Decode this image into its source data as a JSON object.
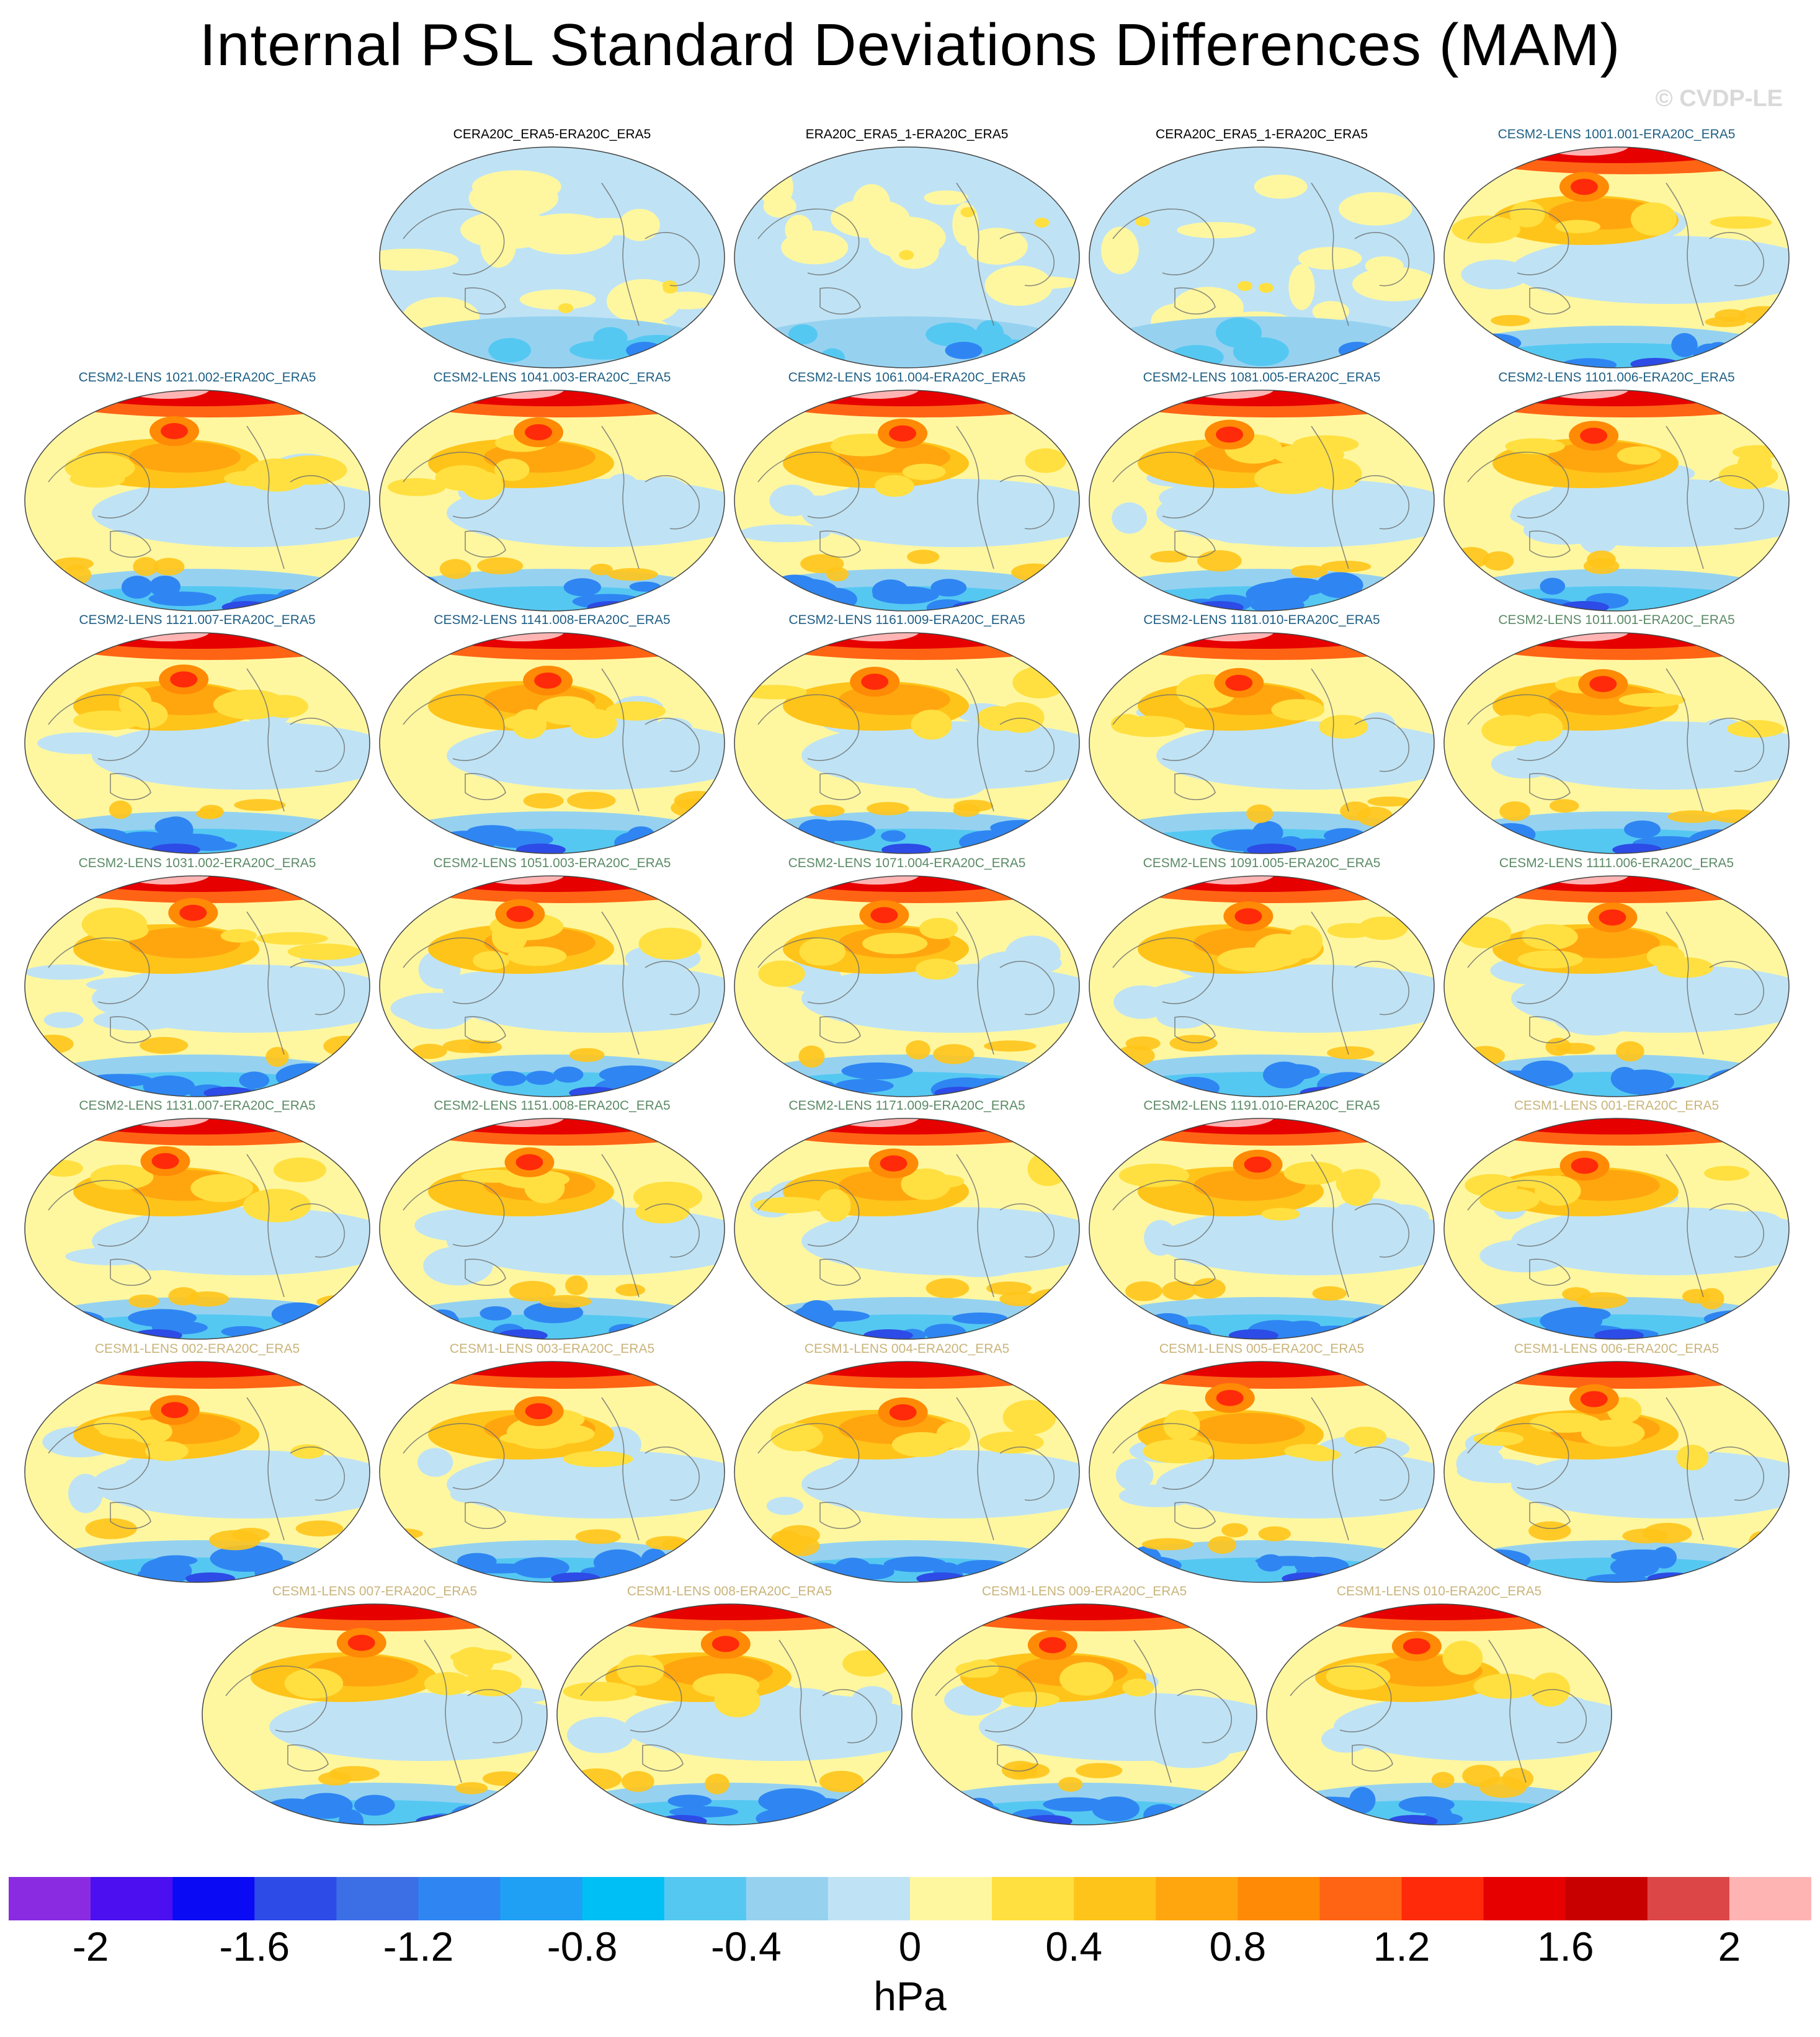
{
  "title": "Internal PSL Standard Deviations Differences (MAM)",
  "copyright": "© CVDP-LE",
  "panels": [
    {
      "label": "CERA20C_ERA5-ERA20C_ERA5",
      "group": "ref"
    },
    {
      "label": "ERA20C_ERA5_1-ERA20C_ERA5",
      "group": "ref"
    },
    {
      "label": "CERA20C_ERA5_1-ERA20C_ERA5",
      "group": "ref"
    },
    {
      "label": "CESM2-LENS 1001.001-ERA20C_ERA5",
      "group": "c2a"
    },
    {
      "label": "CESM2-LENS 1021.002-ERA20C_ERA5",
      "group": "c2a"
    },
    {
      "label": "CESM2-LENS 1041.003-ERA20C_ERA5",
      "group": "c2a"
    },
    {
      "label": "CESM2-LENS 1061.004-ERA20C_ERA5",
      "group": "c2a"
    },
    {
      "label": "CESM2-LENS 1081.005-ERA20C_ERA5",
      "group": "c2a"
    },
    {
      "label": "CESM2-LENS 1101.006-ERA20C_ERA5",
      "group": "c2a"
    },
    {
      "label": "CESM2-LENS 1121.007-ERA20C_ERA5",
      "group": "c2a"
    },
    {
      "label": "CESM2-LENS 1141.008-ERA20C_ERA5",
      "group": "c2a"
    },
    {
      "label": "CESM2-LENS 1161.009-ERA20C_ERA5",
      "group": "c2a"
    },
    {
      "label": "CESM2-LENS 1181.010-ERA20C_ERA5",
      "group": "c2a"
    },
    {
      "label": "CESM2-LENS 1011.001-ERA20C_ERA5",
      "group": "c2b"
    },
    {
      "label": "CESM2-LENS 1031.002-ERA20C_ERA5",
      "group": "c2b"
    },
    {
      "label": "CESM2-LENS 1051.003-ERA20C_ERA5",
      "group": "c2b"
    },
    {
      "label": "CESM2-LENS 1071.004-ERA20C_ERA5",
      "group": "c2b"
    },
    {
      "label": "CESM2-LENS 1091.005-ERA20C_ERA5",
      "group": "c2b"
    },
    {
      "label": "CESM2-LENS 1111.006-ERA20C_ERA5",
      "group": "c2b"
    },
    {
      "label": "CESM2-LENS 1131.007-ERA20C_ERA5",
      "group": "c2b"
    },
    {
      "label": "CESM2-LENS 1151.008-ERA20C_ERA5",
      "group": "c2b"
    },
    {
      "label": "CESM2-LENS 1171.009-ERA20C_ERA5",
      "group": "c2b"
    },
    {
      "label": "CESM2-LENS 1191.010-ERA20C_ERA5",
      "group": "c2b"
    },
    {
      "label": "CESM1-LENS 001-ERA20C_ERA5",
      "group": "c1"
    },
    {
      "label": "CESM1-LENS 002-ERA20C_ERA5",
      "group": "c1"
    },
    {
      "label": "CESM1-LENS 003-ERA20C_ERA5",
      "group": "c1"
    },
    {
      "label": "CESM1-LENS 004-ERA20C_ERA5",
      "group": "c1"
    },
    {
      "label": "CESM1-LENS 005-ERA20C_ERA5",
      "group": "c1"
    },
    {
      "label": "CESM1-LENS 006-ERA20C_ERA5",
      "group": "c1"
    },
    {
      "label": "CESM1-LENS 007-ERA20C_ERA5",
      "group": "c1"
    },
    {
      "label": "CESM1-LENS 008-ERA20C_ERA5",
      "group": "c1"
    },
    {
      "label": "CESM1-LENS 009-ERA20C_ERA5",
      "group": "c1"
    },
    {
      "label": "CESM1-LENS 010-ERA20C_ERA5",
      "group": "c1"
    }
  ],
  "colorbar": {
    "units": "hPa",
    "colors": [
      "#8a2be2",
      "#4b0ff0",
      "#0a0af5",
      "#2d4be6",
      "#3c6ee6",
      "#2f86f2",
      "#1fa0f5",
      "#00bff5",
      "#55c8f2",
      "#96d2f0",
      "#bfe3f5",
      "#fff7a0",
      "#ffe040",
      "#ffc41a",
      "#ffa60f",
      "#ff8a05",
      "#ff6414",
      "#ff2a0a",
      "#e60000",
      "#c80000",
      "#dc4646",
      "#ffb4b4"
    ],
    "tick_labels": [
      "-2",
      "-1.6",
      "-1.2",
      "-0.8",
      "-0.4",
      "0",
      "0.4",
      "0.8",
      "1.2",
      "1.6",
      "2"
    ]
  }
}
